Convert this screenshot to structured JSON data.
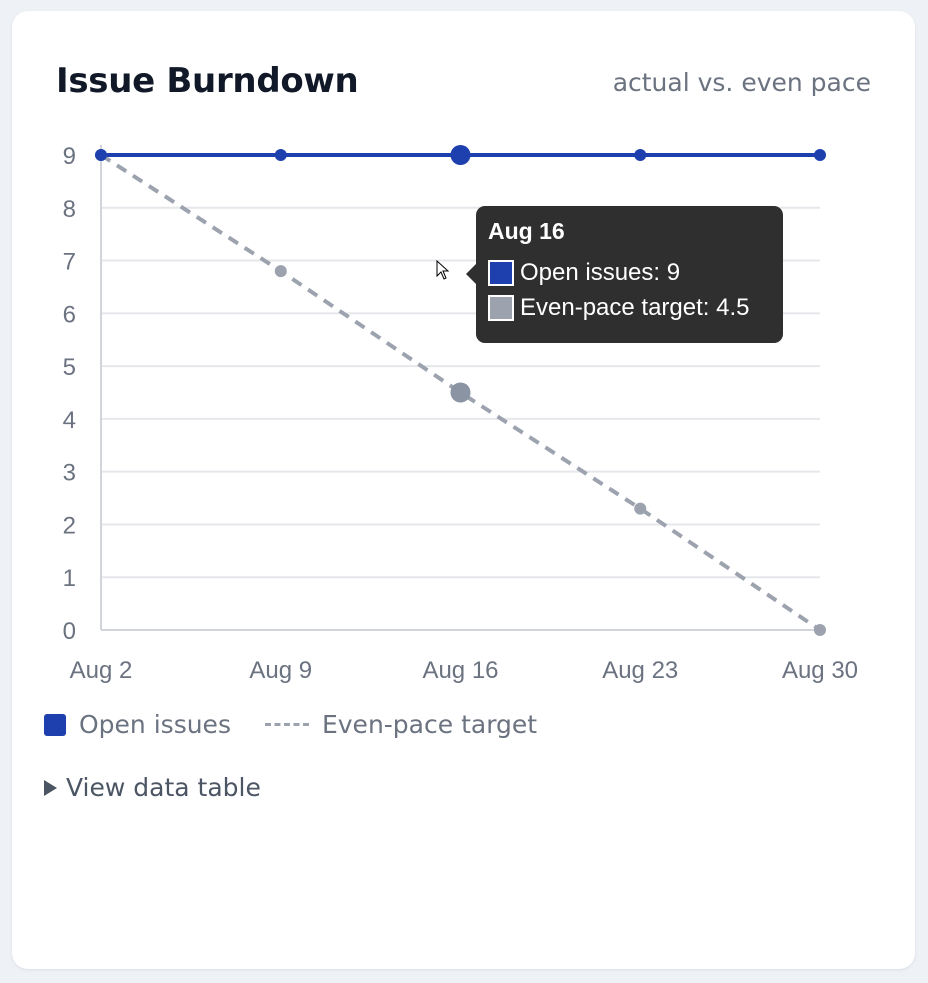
{
  "card": {
    "title": "Issue Burndown",
    "subtitle": "actual vs. even pace"
  },
  "colors": {
    "open_issues": "#1e40af",
    "target": "#9ca3af",
    "target_point": "#8b94a3",
    "grid": "#e5e7eb",
    "axis_text": "#6b7280"
  },
  "chart_data": {
    "type": "line",
    "categories": [
      "Aug 2",
      "Aug 9",
      "Aug 16",
      "Aug 23",
      "Aug 30"
    ],
    "series": [
      {
        "name": "Open issues",
        "values": [
          9,
          9,
          9,
          9,
          9
        ],
        "style": "solid"
      },
      {
        "name": "Even-pace target",
        "values": [
          9,
          6.8,
          4.5,
          2.3,
          0
        ],
        "style": "dashed"
      }
    ],
    "ylim": [
      0,
      9
    ],
    "yticks": [
      0,
      1,
      2,
      3,
      4,
      5,
      6,
      7,
      8,
      9
    ],
    "grid": true,
    "legend": "bottom-left",
    "highlighted_index": 2
  },
  "legend": {
    "items": [
      {
        "label": "Open issues",
        "icon": "square-swatch"
      },
      {
        "label": "Even-pace target",
        "icon": "dashed-line"
      }
    ]
  },
  "tooltip": {
    "title": "Aug 16",
    "rows": [
      {
        "label": "Open issues: 9"
      },
      {
        "label": "Even-pace target: 4.5"
      }
    ]
  },
  "data_table_toggle": {
    "label": "View data table",
    "icon": "caret-right-icon"
  }
}
